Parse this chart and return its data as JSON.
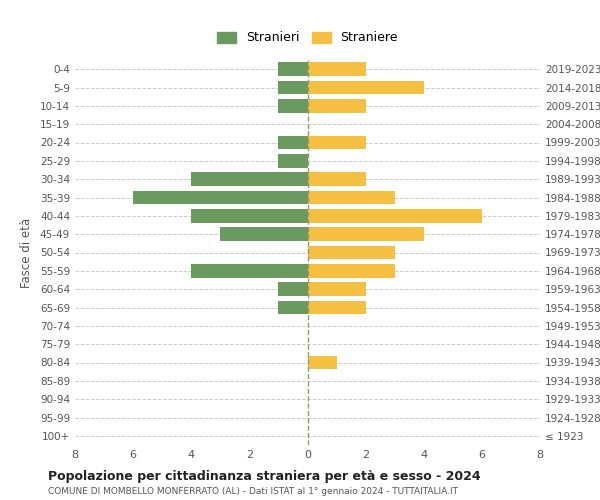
{
  "age_groups": [
    "100+",
    "95-99",
    "90-94",
    "85-89",
    "80-84",
    "75-79",
    "70-74",
    "65-69",
    "60-64",
    "55-59",
    "50-54",
    "45-49",
    "40-44",
    "35-39",
    "30-34",
    "25-29",
    "20-24",
    "15-19",
    "10-14",
    "5-9",
    "0-4"
  ],
  "birth_years": [
    "≤ 1923",
    "1924-1928",
    "1929-1933",
    "1934-1938",
    "1939-1943",
    "1944-1948",
    "1949-1953",
    "1954-1958",
    "1959-1963",
    "1964-1968",
    "1969-1973",
    "1974-1978",
    "1979-1983",
    "1984-1988",
    "1989-1993",
    "1994-1998",
    "1999-2003",
    "2004-2008",
    "2009-2013",
    "2014-2018",
    "2019-2023"
  ],
  "males": [
    0,
    0,
    0,
    0,
    0,
    0,
    0,
    1,
    1,
    4,
    0,
    3,
    4,
    6,
    4,
    1,
    1,
    0,
    1,
    1,
    1
  ],
  "females": [
    0,
    0,
    0,
    0,
    1,
    0,
    0,
    2,
    2,
    3,
    3,
    4,
    6,
    3,
    2,
    0,
    2,
    0,
    2,
    4,
    2
  ],
  "male_color": "#6a9a5f",
  "female_color": "#f5bf42",
  "male_label": "Stranieri",
  "female_label": "Straniere",
  "title": "Popolazione per cittadinanza straniera per età e sesso - 2024",
  "subtitle": "COMUNE DI MOMBELLO MONFERRATO (AL) - Dati ISTAT al 1° gennaio 2024 - TUTTAITALIA.IT",
  "ylabel_left": "Fasce di età",
  "xlim": 8,
  "background_color": "#ffffff",
  "grid_color": "#cccccc"
}
